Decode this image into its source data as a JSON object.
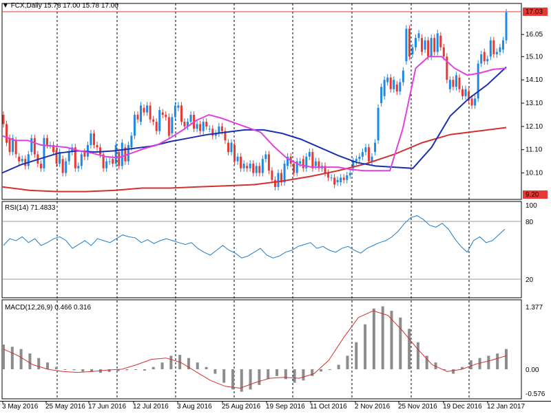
{
  "header": {
    "symbol": "FCX,Daily",
    "ohlc": "15.78 17.00 15.78 17.00"
  },
  "colors": {
    "bull": "#1e88e5",
    "bear": "#e53935",
    "ma_fast": "#e040e0",
    "ma_mid": "#1a2fb0",
    "ma_slow": "#d32f2f",
    "rsi": "#1e7bc8",
    "macd_hist": "#8c8c8c",
    "macd_signal": "#d32f2f",
    "hline": "#e53935"
  },
  "chart_data": [
    {
      "type": "candlestick",
      "panel": "price",
      "ylim": [
        9.2,
        17.03
      ],
      "y_ticks": [
        10.1,
        11.1,
        12.1,
        13.1,
        14.1,
        15.1,
        16.05
      ],
      "price_labels": {
        "last": "17.03",
        "low": "9.20"
      },
      "x_labels": [
        "3 May 2016",
        "25 May 2016",
        "17 Jun 2016",
        "12 Jul 2016",
        "3 Aug 2016",
        "25 Aug 2016",
        "19 Sep 2016",
        "11 Oct 2016",
        "2 Nov 2016",
        "25 Nov 2016",
        "19 Dec 2016",
        "12 Jan 2017"
      ],
      "candles_approx": [
        [
          12.6,
          12.2
        ],
        [
          12.2,
          11.4
        ],
        [
          11.6,
          11.0
        ],
        [
          11.0,
          11.6
        ],
        [
          11.5,
          10.9
        ],
        [
          10.8,
          10.6
        ],
        [
          10.6,
          10.7
        ],
        [
          10.7,
          10.4
        ],
        [
          10.4,
          10.9
        ],
        [
          11.0,
          11.6
        ],
        [
          11.6,
          10.9
        ],
        [
          10.9,
          10.5
        ],
        [
          10.5,
          10.3
        ],
        [
          10.3,
          11.6
        ],
        [
          11.6,
          11.3
        ],
        [
          11.3,
          11.3
        ],
        [
          11.3,
          11.0
        ],
        [
          11.1,
          10.5
        ],
        [
          10.5,
          11.0
        ],
        [
          10.7,
          10.1
        ],
        [
          10.1,
          10.6
        ],
        [
          10.6,
          11.0
        ],
        [
          11.0,
          11.2
        ],
        [
          11.2,
          10.3
        ],
        [
          10.3,
          10.4
        ],
        [
          10.4,
          10.9
        ],
        [
          11.0,
          10.8
        ],
        [
          10.8,
          11.3
        ],
        [
          11.3,
          11.8
        ],
        [
          11.8,
          11.3
        ],
        [
          11.3,
          11.2
        ],
        [
          11.2,
          10.9
        ],
        [
          10.9,
          10.3
        ],
        [
          10.3,
          10.6
        ],
        [
          10.6,
          10.6
        ],
        [
          10.7,
          10.5
        ],
        [
          10.5,
          11.3
        ],
        [
          11.0,
          10.4
        ],
        [
          10.4,
          11.4
        ],
        [
          11.2,
          10.6
        ],
        [
          10.6,
          11.3
        ],
        [
          11.2,
          11.7
        ],
        [
          11.7,
          12.6
        ],
        [
          12.6,
          12.4
        ],
        [
          12.3,
          13.0
        ],
        [
          12.9,
          12.7
        ],
        [
          12.7,
          13.0
        ],
        [
          13.0,
          12.4
        ],
        [
          12.4,
          12.3
        ],
        [
          12.3,
          11.9
        ],
        [
          11.9,
          12.8
        ],
        [
          12.7,
          12.6
        ],
        [
          12.6,
          12.5
        ],
        [
          12.5,
          11.7
        ],
        [
          11.8,
          12.5
        ],
        [
          12.5,
          13.0
        ],
        [
          12.9,
          13.0
        ],
        [
          13.0,
          12.3
        ],
        [
          12.3,
          12.1
        ],
        [
          12.1,
          12.3
        ],
        [
          12.3,
          12.6
        ],
        [
          12.6,
          12.0
        ],
        [
          12.0,
          12.2
        ],
        [
          12.2,
          11.9
        ],
        [
          11.9,
          12.3
        ],
        [
          12.3,
          12.1
        ],
        [
          12.0,
          12.0
        ],
        [
          12.0,
          11.7
        ],
        [
          11.7,
          11.8
        ],
        [
          11.8,
          12.1
        ],
        [
          12.1,
          11.9
        ],
        [
          11.9,
          11.5
        ],
        [
          11.4,
          11.0
        ],
        [
          11.0,
          11.4
        ],
        [
          11.3,
          10.6
        ],
        [
          10.6,
          10.8
        ],
        [
          10.8,
          10.3
        ],
        [
          10.3,
          10.5
        ],
        [
          10.4,
          10.3
        ],
        [
          10.3,
          10.5
        ],
        [
          10.5,
          10.1
        ],
        [
          10.1,
          10.4
        ],
        [
          10.4,
          10.1
        ],
        [
          10.1,
          10.7
        ],
        [
          10.7,
          10.9
        ],
        [
          10.9,
          10.2
        ],
        [
          10.2,
          9.8
        ],
        [
          9.8,
          9.5
        ],
        [
          9.5,
          10.1
        ],
        [
          10.1,
          9.7
        ],
        [
          9.7,
          10.5
        ],
        [
          10.4,
          10.8
        ],
        [
          10.8,
          10.5
        ],
        [
          10.5,
          10.1
        ],
        [
          10.1,
          10.6
        ],
        [
          10.5,
          10.6
        ],
        [
          10.7,
          10.3
        ],
        [
          10.3,
          10.8
        ],
        [
          10.8,
          11.0
        ],
        [
          11.0,
          10.3
        ],
        [
          10.4,
          10.6
        ],
        [
          10.6,
          10.3
        ],
        [
          10.3,
          10.4
        ],
        [
          10.4,
          10.1
        ],
        [
          10.1,
          9.9
        ],
        [
          9.9,
          9.9
        ],
        [
          9.9,
          9.6
        ],
        [
          9.7,
          9.8
        ],
        [
          9.7,
          9.9
        ],
        [
          9.9,
          9.8
        ],
        [
          9.8,
          10.0
        ],
        [
          10.0,
          10.1
        ],
        [
          10.3,
          10.6
        ],
        [
          10.6,
          10.7
        ],
        [
          10.7,
          10.8
        ],
        [
          10.8,
          11.0
        ],
        [
          11.0,
          11.2
        ],
        [
          11.2,
          10.6
        ],
        [
          10.6,
          10.8
        ],
        [
          11.0,
          11.4
        ],
        [
          11.5,
          12.9
        ],
        [
          13.1,
          13.8
        ],
        [
          13.4,
          14.1
        ],
        [
          14.0,
          14.2
        ],
        [
          14.2,
          13.7
        ],
        [
          13.7,
          14.1
        ],
        [
          13.9,
          13.6
        ],
        [
          13.6,
          14.0
        ],
        [
          14.0,
          14.5
        ],
        [
          14.9,
          16.3
        ],
        [
          16.3,
          15.1
        ],
        [
          15.2,
          15.5
        ],
        [
          15.5,
          15.9
        ],
        [
          15.9,
          16.1
        ],
        [
          15.9,
          15.3
        ],
        [
          15.4,
          15.8
        ],
        [
          15.8,
          15.1
        ],
        [
          15.1,
          15.9
        ],
        [
          15.9,
          15.3
        ],
        [
          15.3,
          16.1
        ],
        [
          16.0,
          15.5
        ],
        [
          15.5,
          15.1
        ],
        [
          15.1,
          14.1
        ],
        [
          13.7,
          14.1
        ],
        [
          14.1,
          13.8
        ],
        [
          13.8,
          14.3
        ],
        [
          14.2,
          13.7
        ],
        [
          13.7,
          13.4
        ],
        [
          13.4,
          13.7
        ],
        [
          13.6,
          13.2
        ],
        [
          13.3,
          13.0
        ],
        [
          13.0,
          13.3
        ],
        [
          13.3,
          14.8
        ],
        [
          14.8,
          15.2
        ],
        [
          15.3,
          14.9
        ],
        [
          14.9,
          15.0
        ],
        [
          15.1,
          15.8
        ],
        [
          15.8,
          15.2
        ],
        [
          15.2,
          15.3
        ],
        [
          15.3,
          15.5
        ],
        [
          15.4,
          15.8
        ],
        [
          15.8,
          17.0
        ]
      ],
      "ma_fast_approx": [
        11.7,
        11.5,
        11.5,
        11.3,
        11.25,
        11.2,
        11.05,
        10.95,
        10.8,
        10.75,
        10.95,
        11.15,
        11.3,
        11.6,
        11.95,
        12.35,
        12.6,
        12.45,
        12.25,
        12.05,
        11.85,
        11.25,
        10.75,
        10.45,
        10.35,
        10.35,
        10.35,
        10.25,
        10.2,
        10.2,
        10.2,
        12.0,
        14.6,
        15.1,
        15.1,
        14.6,
        14.3,
        14.4,
        14.55,
        14.6
      ],
      "ma_mid_approx": [
        10.1,
        10.45,
        10.7,
        10.95,
        11.05,
        11.0,
        11.05,
        11.15,
        11.25,
        11.45,
        11.6,
        11.75,
        11.85,
        11.95,
        11.95,
        11.8,
        11.55,
        11.2,
        10.85,
        10.55,
        10.4,
        10.35,
        10.3,
        11.2,
        12.55,
        13.3,
        13.9,
        14.65
      ],
      "ma_slow_approx": [
        9.5,
        9.35,
        9.3,
        9.3,
        9.35,
        9.45,
        9.45,
        9.5,
        9.55,
        9.6,
        9.75,
        9.95,
        10.2,
        10.5,
        10.9,
        11.4,
        11.75,
        11.9,
        12.05
      ]
    },
    {
      "type": "line",
      "panel": "rsi",
      "title": "RSI(14) 71.4833",
      "ylim": [
        0,
        100
      ],
      "levels": [
        "80",
        "20"
      ],
      "top_label": "100",
      "values_approx": [
        55,
        62,
        60,
        64,
        58,
        62,
        55,
        58,
        62,
        64,
        60,
        52,
        56,
        60,
        55,
        62,
        60,
        58,
        62,
        66,
        64,
        63,
        58,
        61,
        57,
        60,
        62,
        60,
        58,
        56,
        58,
        52,
        48,
        45,
        50,
        55,
        50,
        47,
        42,
        44,
        48,
        52,
        45,
        42,
        44,
        48,
        50,
        54,
        56,
        58,
        52,
        54,
        50,
        48,
        52,
        54,
        50,
        47,
        52,
        55,
        58,
        60,
        64,
        70,
        78,
        84,
        86,
        82,
        76,
        74,
        78,
        72,
        62,
        54,
        48,
        60,
        64,
        58,
        60,
        66,
        72
      ]
    },
    {
      "type": "bar+line",
      "panel": "macd",
      "title": "MACD(12,26,9) 0.466 0.316",
      "y_ticks": [
        "1.377",
        "0.00",
        "-0.576"
      ],
      "ylim": [
        -0.576,
        1.377
      ],
      "histogram_approx": [
        0.55,
        0.5,
        0.45,
        0.35,
        0.25,
        0.15,
        0.05,
        0.0,
        -0.02,
        -0.05,
        -0.06,
        -0.08,
        -0.06,
        -0.04,
        -0.02,
        0.0,
        -0.03,
        0.05,
        0.15,
        0.3,
        0.32,
        0.25,
        0.15,
        0.05,
        -0.1,
        -0.3,
        -0.45,
        -0.5,
        -0.45,
        -0.35,
        -0.22,
        -0.15,
        -0.22,
        -0.3,
        -0.25,
        -0.15,
        -0.05,
        0.0,
        0.1,
        0.3,
        0.6,
        1.0,
        1.35,
        1.4,
        1.3,
        1.15,
        0.9,
        0.6,
        0.3,
        0.15,
        0.0,
        -0.1,
        0.05,
        0.2,
        0.25,
        0.3,
        0.35,
        0.45
      ],
      "signal_approx": [
        0.45,
        0.3,
        0.1,
        0.0,
        -0.05,
        -0.07,
        -0.05,
        -0.02,
        0.0,
        0.1,
        0.22,
        0.25,
        0.15,
        -0.05,
        -0.25,
        -0.38,
        -0.42,
        -0.3,
        -0.2,
        -0.18,
        -0.2,
        -0.1,
        0.2,
        0.7,
        1.15,
        1.3,
        1.2,
        0.85,
        0.45,
        0.1,
        -0.05,
        0.0,
        0.12,
        0.2,
        0.3
      ]
    }
  ]
}
